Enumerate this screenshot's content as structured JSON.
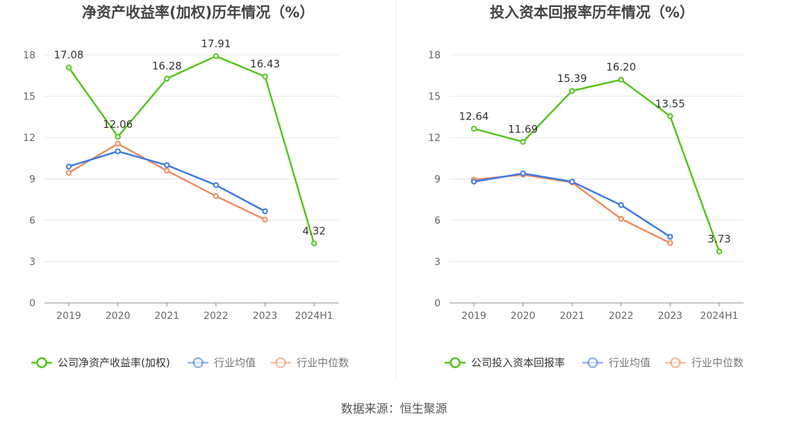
{
  "source_text": "数据来源：恒生聚源",
  "chart_data": [
    {
      "type": "line",
      "title": "净资产收益率(加权)历年情况（%）",
      "categories": [
        "2019",
        "2020",
        "2021",
        "2022",
        "2023",
        "2024H1"
      ],
      "ylim": [
        0,
        18
      ],
      "yticks": [
        0,
        3,
        6,
        9,
        12,
        15,
        18
      ],
      "grid": true,
      "legend_position": "bottom",
      "series": [
        {
          "name": "公司净资产收益率(加权)",
          "color": "#52c41a",
          "values": [
            17.08,
            12.06,
            16.28,
            17.91,
            16.43,
            4.32
          ],
          "labels": [
            "17.08",
            "12.06",
            "16.28",
            "17.91",
            "16.43",
            "4.32"
          ]
        },
        {
          "name": "行业均值",
          "color": "#3b78e7",
          "values": [
            9.9,
            11.0,
            10.0,
            8.55,
            6.65,
            null
          ]
        },
        {
          "name": "行业中位数",
          "color": "#f08a5d",
          "values": [
            9.45,
            11.55,
            9.6,
            7.75,
            6.05,
            null
          ]
        }
      ]
    },
    {
      "type": "line",
      "title": "投入资本回报率历年情况（%）",
      "categories": [
        "2019",
        "2020",
        "2021",
        "2022",
        "2023",
        "2024H1"
      ],
      "ylim": [
        0,
        18
      ],
      "yticks": [
        0,
        3,
        6,
        9,
        12,
        15,
        18
      ],
      "grid": true,
      "legend_position": "bottom",
      "series": [
        {
          "name": "公司投入资本回报率",
          "color": "#52c41a",
          "values": [
            12.64,
            11.69,
            15.39,
            16.2,
            13.55,
            3.73
          ],
          "labels": [
            "12.64",
            "11.69",
            "15.39",
            "16.20",
            "13.55",
            "3.73"
          ]
        },
        {
          "name": "行业均值",
          "color": "#3b78e7",
          "values": [
            8.8,
            9.4,
            8.8,
            7.1,
            4.8,
            null
          ]
        },
        {
          "name": "行业中位数",
          "color": "#f08a5d",
          "values": [
            8.95,
            9.3,
            8.75,
            6.1,
            4.35,
            null
          ]
        }
      ]
    }
  ]
}
